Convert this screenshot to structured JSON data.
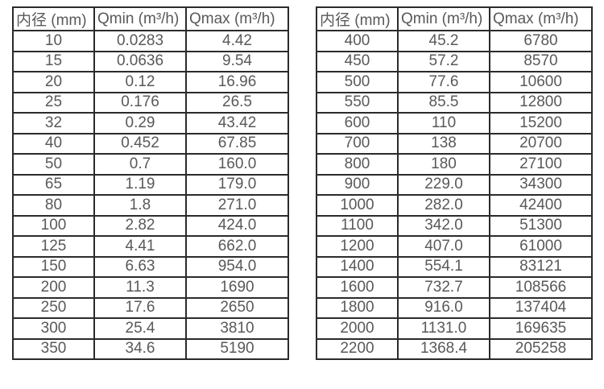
{
  "colors": {
    "background": "#ffffff",
    "text": "#595959",
    "grid_border": "#2b2b2b"
  },
  "tables": [
    {
      "name": "small-diameter-flow-table",
      "headers": [
        "内径 (mm)",
        "Qmin (m³/h)",
        "Qmax (m³/h)"
      ],
      "rows": [
        [
          "10",
          "0.0283",
          "4.42"
        ],
        [
          "15",
          "0.0636",
          "9.54"
        ],
        [
          "20",
          "0.12",
          "16.96"
        ],
        [
          "25",
          "0.176",
          "26.5"
        ],
        [
          "32",
          "0.29",
          "43.42"
        ],
        [
          "40",
          "0.452",
          "67.85"
        ],
        [
          "50",
          "0.7",
          "160.0"
        ],
        [
          "65",
          "1.19",
          "179.0"
        ],
        [
          "80",
          "1.8",
          "271.0"
        ],
        [
          "100",
          "2.82",
          "424.0"
        ],
        [
          "125",
          "4.41",
          "662.0"
        ],
        [
          "150",
          "6.63",
          "954.0"
        ],
        [
          "200",
          "11.3",
          "1690"
        ],
        [
          "250",
          "17.6",
          "2650"
        ],
        [
          "300",
          "25.4",
          "3810"
        ],
        [
          "350",
          "34.6",
          "5190"
        ]
      ]
    },
    {
      "name": "large-diameter-flow-table",
      "headers": [
        "内径 (mm)",
        "Qmin (m³/h)",
        "Qmax (m³/h)"
      ],
      "rows": [
        [
          "400",
          "45.2",
          "6780"
        ],
        [
          "450",
          "57.2",
          "8570"
        ],
        [
          "500",
          "77.6",
          "10600"
        ],
        [
          "550",
          "85.5",
          "12800"
        ],
        [
          "600",
          "110",
          "15200"
        ],
        [
          "700",
          "138",
          "20700"
        ],
        [
          "800",
          "180",
          "27100"
        ],
        [
          "900",
          "229.0",
          "34300"
        ],
        [
          "1000",
          "282.0",
          "42400"
        ],
        [
          "1100",
          "342.0",
          "51300"
        ],
        [
          "1200",
          "407.0",
          "61000"
        ],
        [
          "1400",
          "554.1",
          "83121"
        ],
        [
          "1600",
          "732.7",
          "108566"
        ],
        [
          "1800",
          "916.0",
          "137404"
        ],
        [
          "2000",
          "1131.0",
          "169635"
        ],
        [
          "2200",
          "1368.4",
          "205258"
        ]
      ]
    }
  ]
}
